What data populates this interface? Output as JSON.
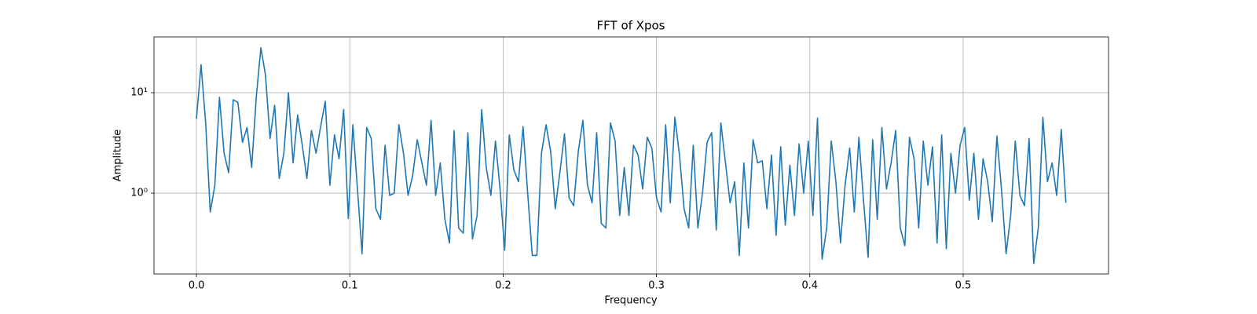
{
  "chart_data": {
    "type": "line",
    "title": "FFT of Xpos",
    "x_label": "Frequency",
    "y_label": "Amplitude",
    "color": "#1f77b4",
    "y_scale": "log",
    "grid": true,
    "xlim": [
      -0.0277,
      0.5948
    ],
    "ylim": [
      0.157,
      35.9
    ],
    "xticks": [
      {
        "value": 0,
        "label": "0.0"
      },
      0.1,
      0.2,
      0.3,
      0.4,
      0.5
    ],
    "yticks": [
      {
        "value": 1,
        "label": "10⁰"
      },
      {
        "value": 10,
        "label": "10¹"
      }
    ],
    "x": [
      0,
      0.003,
      0.006,
      0.009,
      0.012,
      0.015,
      0.018,
      0.021,
      0.024,
      0.027,
      0.03,
      0.033,
      0.036,
      0.039,
      0.042,
      0.045,
      0.048,
      0.051,
      0.054,
      0.057,
      0.06,
      0.063,
      0.066,
      0.069,
      0.072,
      0.075,
      0.078,
      0.081,
      0.084,
      0.087,
      0.09,
      0.093,
      0.096,
      0.099,
      0.102,
      0.105,
      0.108,
      0.111,
      0.114,
      0.117,
      0.12,
      0.123,
      0.126,
      0.129,
      0.132,
      0.135,
      0.138,
      0.141,
      0.144,
      0.147,
      0.15,
      0.153,
      0.156,
      0.159,
      0.162,
      0.165,
      0.168,
      0.171,
      0.174,
      0.177,
      0.18,
      0.183,
      0.186,
      0.189,
      0.192,
      0.195,
      0.198,
      0.201,
      0.204,
      0.207,
      0.21,
      0.213,
      0.216,
      0.219,
      0.222,
      0.225,
      0.228,
      0.231,
      0.234,
      0.237,
      0.24,
      0.243,
      0.246,
      0.249,
      0.252,
      0.255,
      0.258,
      0.261,
      0.264,
      0.267,
      0.27,
      0.273,
      0.276,
      0.279,
      0.282,
      0.285,
      0.288,
      0.291,
      0.294,
      0.297,
      0.3,
      0.303,
      0.306,
      0.309,
      0.312,
      0.315,
      0.318,
      0.321,
      0.324,
      0.327,
      0.33,
      0.333,
      0.336,
      0.339,
      0.342,
      0.345,
      0.348,
      0.351,
      0.354,
      0.357,
      0.36,
      0.363,
      0.366,
      0.369,
      0.372,
      0.375,
      0.378,
      0.381,
      0.384,
      0.387,
      0.39,
      0.393,
      0.396,
      0.399,
      0.402,
      0.405,
      0.408,
      0.411,
      0.414,
      0.417,
      0.42,
      0.423,
      0.426,
      0.429,
      0.432,
      0.435,
      0.438,
      0.441,
      0.444,
      0.447,
      0.45,
      0.453,
      0.456,
      0.459,
      0.462,
      0.465,
      0.468,
      0.471,
      0.474,
      0.477,
      0.48,
      0.483,
      0.486,
      0.489,
      0.492,
      0.495,
      0.498,
      0.501,
      0.504,
      0.507,
      0.51,
      0.513,
      0.516,
      0.519,
      0.522,
      0.525,
      0.528,
      0.531,
      0.534,
      0.537,
      0.54,
      0.543,
      0.546,
      0.549,
      0.552,
      0.555,
      0.558,
      0.561,
      0.564,
      0.567
    ],
    "values": [
      5.5,
      19,
      5,
      0.65,
      1.2,
      9,
      2.5,
      1.6,
      8.5,
      8,
      3.2,
      4.5,
      1.8,
      9,
      28,
      15,
      3.5,
      7.5,
      1.4,
      2.5,
      10,
      2,
      6,
      3,
      1.4,
      4.2,
      2.5,
      4.6,
      8.2,
      1.2,
      3.8,
      2.2,
      6.8,
      0.56,
      4.8,
      1.1,
      0.25,
      4.5,
      3.5,
      0.7,
      0.55,
      3,
      0.95,
      1,
      4.8,
      2.5,
      0.95,
      1.5,
      3.4,
      2,
      1.2,
      5.3,
      0.95,
      2,
      0.55,
      0.32,
      4.2,
      0.45,
      0.4,
      4,
      0.35,
      0.6,
      6.8,
      1.8,
      0.95,
      3.3,
      1.1,
      0.27,
      3.8,
      1.7,
      1.3,
      4.6,
      1,
      0.24,
      0.24,
      2.5,
      4.8,
      2.6,
      0.7,
      1.6,
      3.9,
      0.9,
      0.75,
      2.6,
      5.3,
      1.2,
      0.8,
      4,
      0.5,
      0.45,
      5,
      3.3,
      0.6,
      1.8,
      0.6,
      3,
      2.4,
      1.1,
      3.6,
      2.8,
      0.9,
      0.65,
      4.8,
      0.8,
      5.7,
      2.4,
      0.7,
      0.45,
      3,
      0.45,
      1,
      3.2,
      4,
      0.43,
      5,
      2,
      0.8,
      1.3,
      0.24,
      2,
      0.45,
      3.4,
      2,
      2.1,
      0.7,
      2.4,
      0.38,
      2.9,
      0.48,
      1.9,
      0.6,
      3.1,
      1,
      3.3,
      0.6,
      5.6,
      0.22,
      0.45,
      3.3,
      1.3,
      0.32,
      1.2,
      2.8,
      0.65,
      3.6,
      0.85,
      0.23,
      3.4,
      0.55,
      4.5,
      1.1,
      2,
      4.2,
      0.45,
      0.3,
      3.6,
      2.2,
      0.45,
      3.3,
      1.2,
      2.9,
      0.32,
      3.8,
      0.28,
      2.5,
      1,
      3,
      4.5,
      0.85,
      2.5,
      0.55,
      2.2,
      1.3,
      0.52,
      3.7,
      1.1,
      0.25,
      0.6,
      3.3,
      0.95,
      0.75,
      3.5,
      0.2,
      0.45,
      5.7,
      1.3,
      2,
      0.95,
      4.3,
      0.8
    ]
  }
}
